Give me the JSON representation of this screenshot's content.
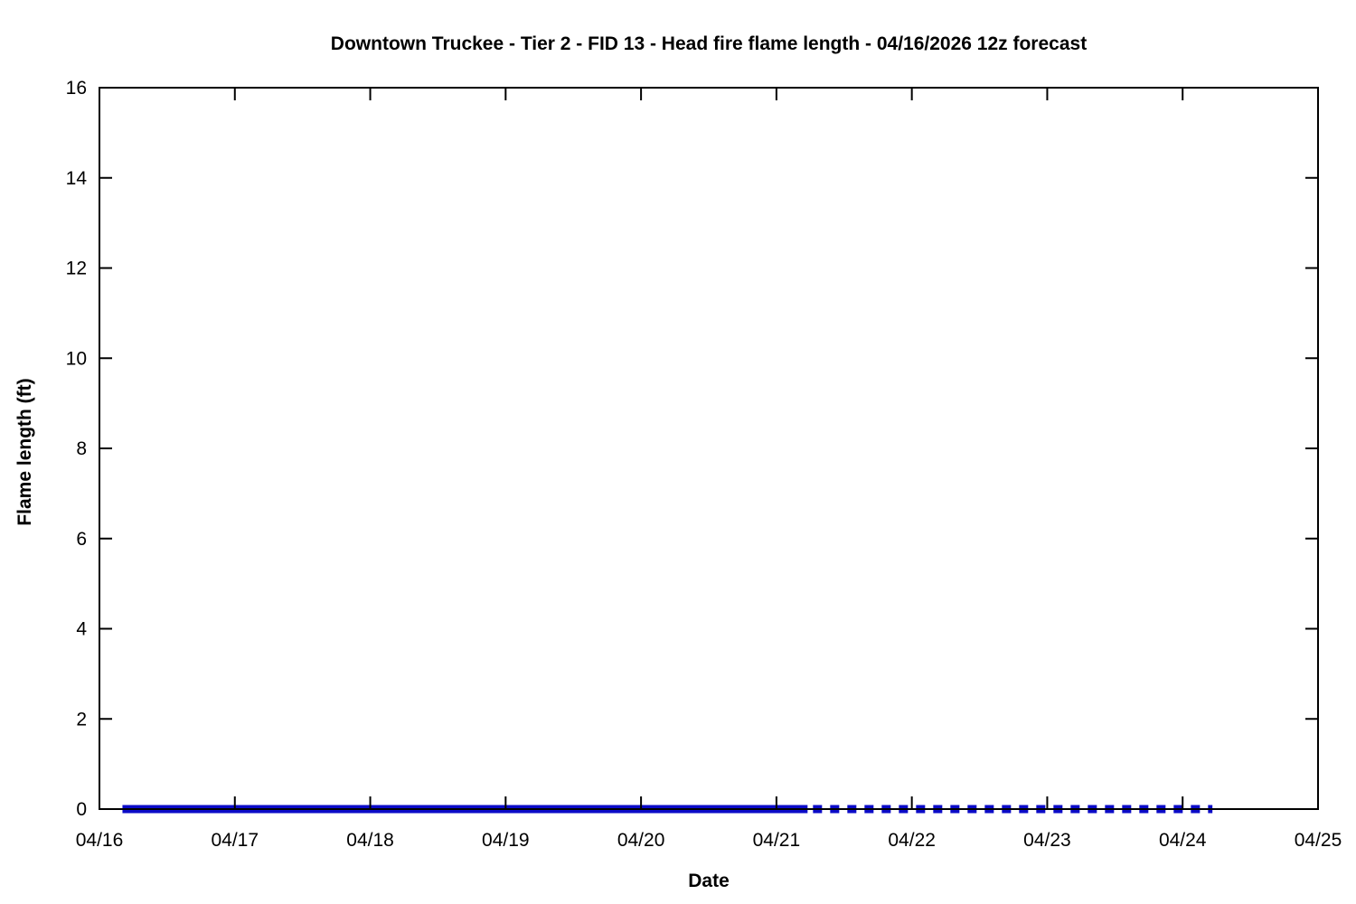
{
  "page": {
    "background_color": "#ffffff",
    "text_color": "#000000"
  },
  "chart_data": {
    "type": "line",
    "title": "Downtown Truckee - Tier 2 - FID 13 - Head fire flame length - 04/16/2026 12z forecast",
    "xlabel": "Date",
    "ylabel": "Flame length (ft)",
    "x_tick_labels": [
      "04/16",
      "04/17",
      "04/18",
      "04/19",
      "04/20",
      "04/21",
      "04/22",
      "04/23",
      "04/24",
      "04/25"
    ],
    "x_tick_days": [
      0,
      1,
      2,
      3,
      4,
      5,
      6,
      7,
      8,
      9
    ],
    "y_ticks": [
      0,
      2,
      4,
      6,
      8,
      10,
      12,
      14,
      16
    ],
    "xlim_days": [
      0,
      9
    ],
    "ylim": [
      0,
      16
    ],
    "grid": false,
    "legend": "none",
    "frame_color": "#000000",
    "series": [
      {
        "name": "head-fire-flame-length",
        "segment": "solid",
        "color": "#0b0bc8",
        "value_ft": 0,
        "x_start_day": 0.17,
        "x_end_day": 5.23
      },
      {
        "name": "head-fire-flame-length-extended",
        "segment": "dashed",
        "color": "#0b0bc8",
        "value_ft": 0,
        "x_start_day": 5.27,
        "x_end_day": 8.22
      }
    ]
  }
}
